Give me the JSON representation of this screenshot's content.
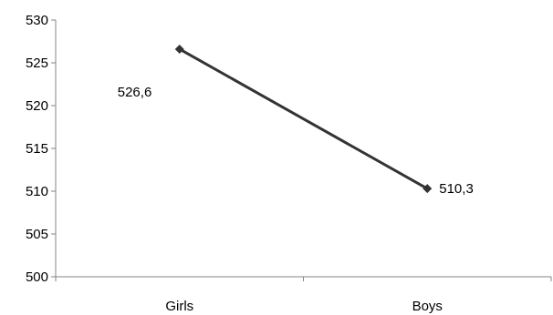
{
  "chart_data": {
    "type": "line",
    "categories": [
      "Girls",
      "Boys"
    ],
    "series": [
      {
        "values": [
          526.6,
          510.3
        ]
      }
    ],
    "data_labels": [
      "526,6",
      "510,3"
    ],
    "y_ticks": [
      500,
      505,
      510,
      515,
      520,
      525,
      530
    ],
    "ylim": [
      500,
      530
    ],
    "grid": false,
    "legend": "none",
    "line_color": "#333333"
  }
}
